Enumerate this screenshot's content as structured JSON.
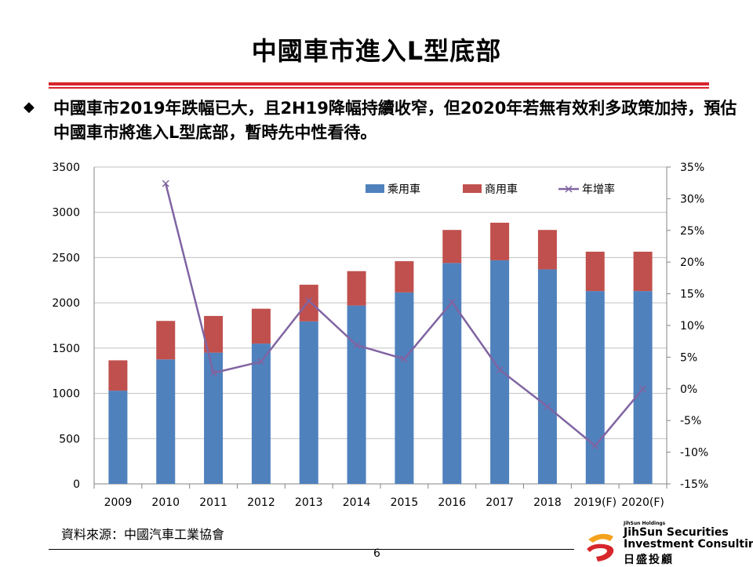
{
  "slide": {
    "title": "中國車市進入L型底部",
    "bullet_text": "中國車市2019年跌幅已大，且2H19降幅持續收窄，但2020年若無有效利多政策加持，預估中國車市將進入L型底部，暫時先中性看待。",
    "source": "資料來源：中國汽車工業協會",
    "page_number": "6"
  },
  "logo": {
    "small_text": "JihSun Holdings",
    "line1": "JihSun Securities",
    "line2": "Investment Consulting",
    "chinese": "日盛投顧"
  },
  "colors": {
    "passenger": "#4f81bd",
    "commercial": "#c0504d",
    "growth": "#8064a2",
    "accent": "#d7262b"
  },
  "chart_data": {
    "type": "bar",
    "stacked": true,
    "categories": [
      "2009",
      "2010",
      "2011",
      "2012",
      "2013",
      "2014",
      "2015",
      "2016",
      "2017",
      "2018",
      "2019(F)",
      "2020(F)"
    ],
    "series": [
      {
        "name": "乘用車",
        "axis": "left",
        "values": [
          1030,
          1375,
          1450,
          1550,
          1795,
          1970,
          2115,
          2440,
          2470,
          2370,
          2130,
          2130
        ]
      },
      {
        "name": "商用車",
        "axis": "left",
        "values": [
          335,
          425,
          405,
          385,
          405,
          380,
          345,
          365,
          415,
          435,
          435,
          435
        ]
      },
      {
        "name": "年增率",
        "axis": "right",
        "type": "line",
        "marker": "x",
        "values": [
          null,
          32.4,
          2.5,
          4.3,
          13.9,
          6.9,
          4.7,
          13.7,
          3.0,
          -2.8,
          -9.0,
          0.0
        ]
      }
    ],
    "y_left": {
      "min": 0,
      "max": 3500,
      "step": 500,
      "ticks": [
        "0",
        "500",
        "1000",
        "1500",
        "2000",
        "2500",
        "3000",
        "3500"
      ]
    },
    "y_right": {
      "min": -15,
      "max": 35,
      "step": 5,
      "ticks": [
        "-15%",
        "-10%",
        "-5%",
        "0%",
        "5%",
        "10%",
        "15%",
        "20%",
        "25%",
        "30%",
        "35%"
      ]
    },
    "legend_position": "top-right",
    "grid": true
  }
}
